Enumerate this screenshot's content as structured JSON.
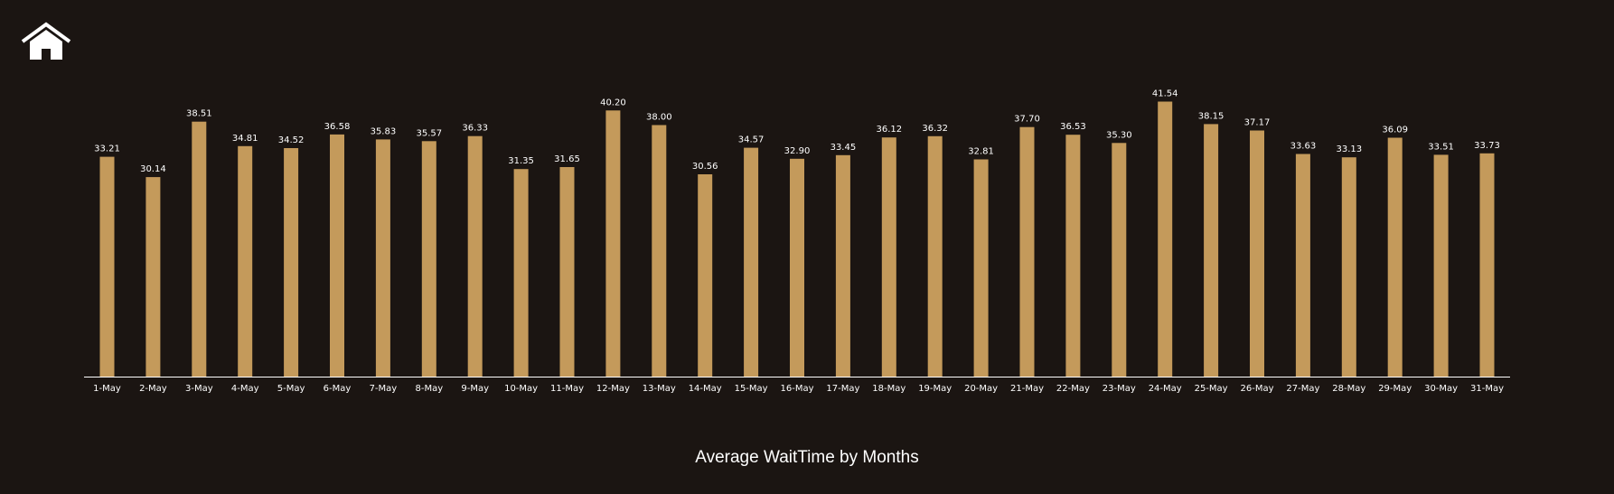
{
  "icons": {
    "home": "home-icon"
  },
  "colors": {
    "background": "#1b1512",
    "bar": "#c49a5b",
    "axis": "#ffffff",
    "text": "#ffffff"
  },
  "chart_data": {
    "type": "bar",
    "title": "Average WaitTime by Months",
    "xlabel": "",
    "ylabel": "",
    "ylim": [
      0,
      42.5
    ],
    "grid": false,
    "legend": "none",
    "categories": [
      "1-May",
      "2-May",
      "3-May",
      "4-May",
      "5-May",
      "6-May",
      "7-May",
      "8-May",
      "9-May",
      "10-May",
      "11-May",
      "12-May",
      "13-May",
      "14-May",
      "15-May",
      "16-May",
      "17-May",
      "18-May",
      "19-May",
      "20-May",
      "21-May",
      "22-May",
      "23-May",
      "24-May",
      "25-May",
      "26-May",
      "27-May",
      "28-May",
      "29-May",
      "30-May",
      "31-May"
    ],
    "values": [
      33.21,
      30.14,
      38.51,
      34.81,
      34.52,
      36.58,
      35.83,
      35.57,
      36.33,
      31.35,
      31.65,
      40.2,
      38.0,
      30.56,
      34.57,
      32.9,
      33.45,
      36.12,
      36.32,
      32.81,
      37.7,
      36.53,
      35.3,
      41.54,
      38.15,
      37.17,
      33.63,
      33.13,
      36.09,
      33.51,
      33.73
    ],
    "value_labels": [
      "33.21",
      "30.14",
      "38.51",
      "34.81",
      "34.52",
      "36.58",
      "35.83",
      "35.57",
      "36.33",
      "31.35",
      "31.65",
      "40.20",
      "38.00",
      "30.56",
      "34.57",
      "32.90",
      "33.45",
      "36.12",
      "36.32",
      "32.81",
      "37.70",
      "36.53",
      "35.30",
      "41.54",
      "38.15",
      "37.17",
      "33.63",
      "33.13",
      "36.09",
      "33.51",
      "33.73"
    ]
  }
}
